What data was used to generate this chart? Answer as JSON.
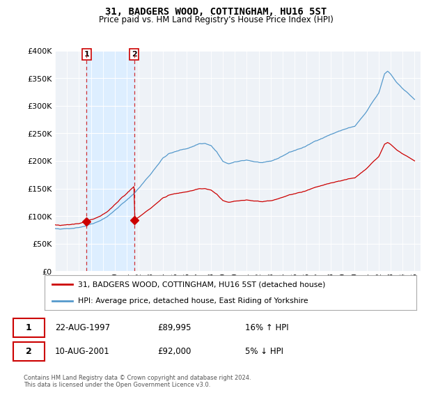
{
  "title": "31, BADGERS WOOD, COTTINGHAM, HU16 5ST",
  "subtitle": "Price paid vs. HM Land Registry's House Price Index (HPI)",
  "legend_line1": "31, BADGERS WOOD, COTTINGHAM, HU16 5ST (detached house)",
  "legend_line2": "HPI: Average price, detached house, East Riding of Yorkshire",
  "footer": "Contains HM Land Registry data © Crown copyright and database right 2024.\nThis data is licensed under the Open Government Licence v3.0.",
  "sale1_label": "1",
  "sale1_date": "22-AUG-1997",
  "sale1_price": 89995,
  "sale1_hpi_text": "16% ↑ HPI",
  "sale1_year": 1997.64,
  "sale2_label": "2",
  "sale2_date": "10-AUG-2001",
  "sale2_price": 92000,
  "sale2_hpi_text": "5% ↓ HPI",
  "sale2_year": 2001.61,
  "ylim": [
    0,
    400000
  ],
  "xlim": [
    1995.0,
    2025.5
  ],
  "price_color": "#cc0000",
  "hpi_color": "#5599cc",
  "shade_color": "#ddeeff",
  "background_color": "#eef2f7",
  "grid_color": "#ffffff",
  "yticks": [
    0,
    50000,
    100000,
    150000,
    200000,
    250000,
    300000,
    350000,
    400000
  ],
  "ytick_labels": [
    "£0",
    "£50K",
    "£100K",
    "£150K",
    "£200K",
    "£250K",
    "£300K",
    "£350K",
    "£400K"
  ],
  "xticks": [
    1995,
    1996,
    1997,
    1998,
    1999,
    2000,
    2001,
    2002,
    2003,
    2004,
    2005,
    2006,
    2007,
    2008,
    2009,
    2010,
    2011,
    2012,
    2013,
    2014,
    2015,
    2016,
    2017,
    2018,
    2019,
    2020,
    2021,
    2022,
    2023,
    2024,
    2025
  ]
}
